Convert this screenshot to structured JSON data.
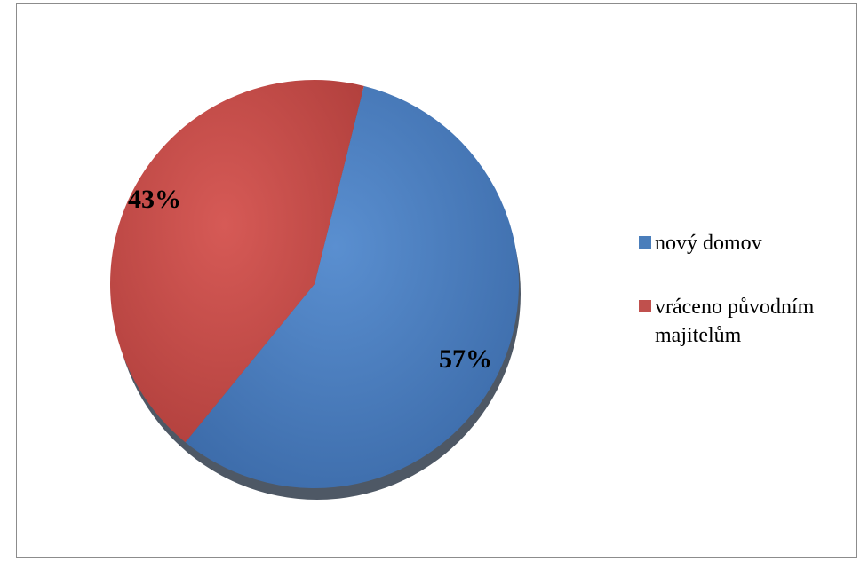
{
  "chart_data": {
    "type": "pie",
    "title": "",
    "categories": [
      "nový domov",
      "vráceno původním majitelům"
    ],
    "values": [
      57,
      43
    ],
    "labels": [
      "57%",
      "43%"
    ],
    "colors": [
      "#4a7ebb",
      "#c0504d"
    ],
    "legend_position": "right"
  },
  "legend": {
    "items": [
      {
        "label": "nový domov",
        "color": "#4a7ebb"
      },
      {
        "label": "vráceno původním majitelům",
        "color": "#c0504d"
      }
    ]
  }
}
